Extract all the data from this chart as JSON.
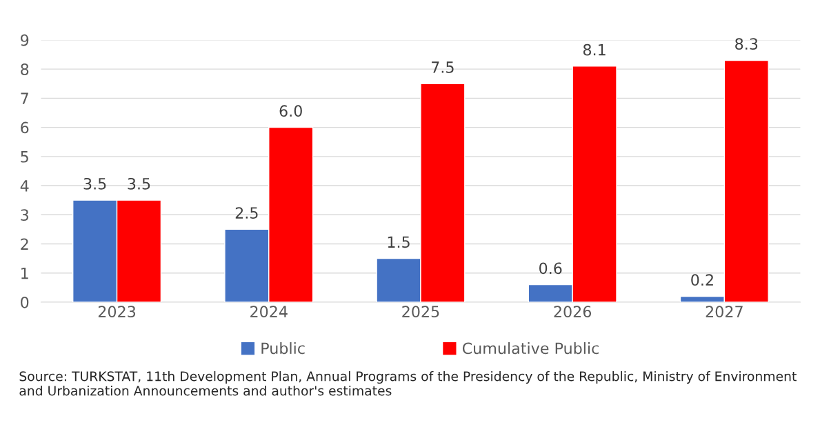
{
  "chart_data": {
    "type": "bar",
    "categories": [
      "2023",
      "2024",
      "2025",
      "2026",
      "2027"
    ],
    "series": [
      {
        "name": "Public",
        "color": "#4472c4",
        "values": [
          3.5,
          2.5,
          1.5,
          0.6,
          0.2
        ],
        "value_labels": [
          "3.5",
          "2.5",
          "1.5",
          "0.6",
          "0.2"
        ]
      },
      {
        "name": "Cumulative Public",
        "color": "#ff0000",
        "values": [
          3.5,
          6.0,
          7.5,
          8.1,
          8.3
        ],
        "value_labels": [
          "3.5",
          "6.0",
          "7.5",
          "8.1",
          "8.3"
        ]
      }
    ],
    "ylim": [
      0,
      9
    ],
    "yticks": [
      0,
      1,
      2,
      3,
      4,
      5,
      6,
      7,
      8,
      9
    ],
    "grid": "y",
    "legend": "bottom",
    "annotations": [
      "Source: TURKSTAT, 11th Development Plan, Annual Programs of the Presidency of the Republic, Ministry of Environment and Urbanization Announcements and author's estimates"
    ]
  }
}
